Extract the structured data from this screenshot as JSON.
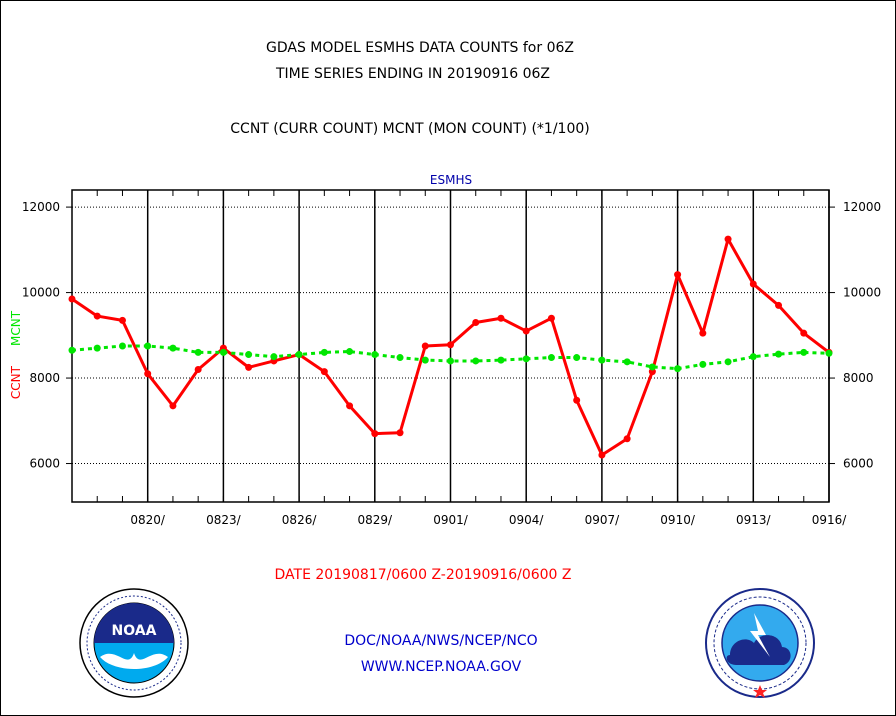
{
  "header": {
    "title_line1": "GDAS MODEL ESMHS DATA COUNTS for 06Z",
    "title_line2": "TIME SERIES ENDING IN 20190916 06Z",
    "subtitle": "CCNT (CURR COUNT) MCNT (MON COUNT) (*1/100)"
  },
  "chart_data": {
    "type": "line",
    "title": "ESMHS",
    "ylabel_series1": "CCNT",
    "ylabel_series2": "MCNT",
    "ylim": [
      5100,
      12400
    ],
    "yticks": [
      6000,
      8000,
      10000,
      12000
    ],
    "ytick_labels": [
      "6000",
      "8000",
      "10000",
      "12000"
    ],
    "x_tick_labels": [
      "0820/",
      "0823/",
      "0826/",
      "0829/",
      "0901/",
      "0904/",
      "0907/",
      "0910/",
      "0913/",
      "0916/"
    ],
    "x_tick_days": [
      3,
      6,
      9,
      12,
      15,
      18,
      21,
      24,
      27,
      30
    ],
    "x_range_days": [
      0,
      30
    ],
    "grid": true,
    "xlabel": "DATE 20190817/0600 Z-20190916/0600 Z",
    "series": [
      {
        "name": "CCNT",
        "color": "#ff0000",
        "style": "solid",
        "values": [
          9850,
          9450,
          9350,
          8100,
          7350,
          8200,
          8700,
          8250,
          8400,
          8550,
          8150,
          7350,
          6700,
          6720,
          8750,
          8780,
          9300,
          9400,
          9100,
          9400,
          7480,
          6200,
          6580,
          8150,
          10420,
          9050,
          11250,
          10200,
          9700,
          9050,
          8600
        ]
      },
      {
        "name": "MCNT",
        "color": "#00e600",
        "style": "dotted",
        "values": [
          8650,
          8700,
          8750,
          8750,
          8700,
          8600,
          8600,
          8550,
          8500,
          8550,
          8600,
          8620,
          8550,
          8480,
          8420,
          8400,
          8400,
          8420,
          8450,
          8480,
          8480,
          8420,
          8380,
          8260,
          8220,
          8320,
          8380,
          8500,
          8560,
          8600,
          8580
        ]
      }
    ]
  },
  "footer": {
    "line1": "DOC/NOAA/NWS/NCEP/NCO",
    "line2": "WWW.NCEP.NOAA.GOV"
  },
  "logos": {
    "left": {
      "name": "noaa-logo",
      "acronym": "NOAA"
    },
    "right": {
      "name": "nws-logo"
    }
  },
  "colors": {
    "ccnt": "#ff0000",
    "mcnt": "#00e600",
    "title_blue": "#0000aa",
    "footer_blue": "#0000cc",
    "date_red": "#ff0000"
  }
}
